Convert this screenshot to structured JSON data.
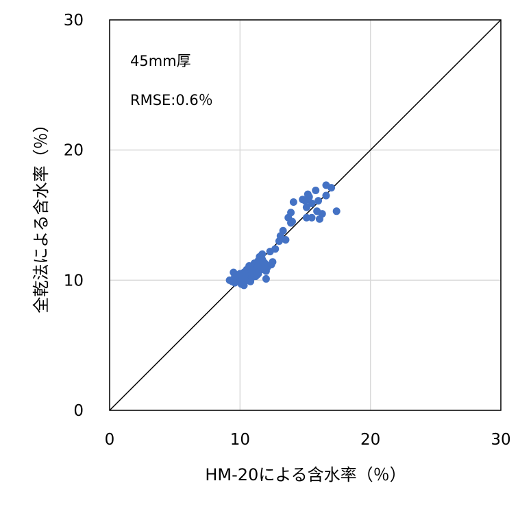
{
  "chart_data": {
    "type": "scatter",
    "annotations": [
      "45mm厚",
      "RMSE:0.6％"
    ],
    "x_label": "HM-20による含水率（％）",
    "y_label": "全乾法による含水率（％）",
    "color": "#4472c4",
    "grid": true,
    "diagonal": true,
    "xlim": [
      0,
      30
    ],
    "ylim": [
      0,
      30
    ],
    "xticks": [
      0,
      10,
      20,
      30
    ],
    "yticks": [
      0,
      10,
      20,
      30
    ],
    "x": [
      16.6,
      17.0,
      15.8,
      16.6,
      15.2,
      14.8,
      15.0,
      15.3,
      14.1,
      15.5,
      16.0,
      15.1,
      15.9,
      13.9,
      17.4,
      13.7,
      14.0,
      15.1,
      15.5,
      16.1,
      16.3,
      13.9,
      13.3,
      13.1,
      13.5,
      13.0,
      12.7,
      12.3,
      11.7,
      11.5,
      9.2,
      9.4,
      9.5,
      9.6,
      9.7,
      9.8,
      9.9,
      10.0,
      10.1,
      10.2,
      10.3,
      10.3,
      10.4,
      10.5,
      10.6,
      10.6,
      10.7,
      10.8,
      10.9,
      11.0,
      11.0,
      11.1,
      11.2,
      11.3,
      11.4,
      11.4,
      11.5,
      11.6,
      11.7,
      11.8,
      11.9,
      12.0,
      12.1,
      12.4,
      12.5,
      9.6,
      10.0,
      10.4,
      10.8,
      11.2,
      11.6,
      12.0,
      10.2,
      10.9,
      11.3,
      11.8
    ],
    "y": [
      17.3,
      17.1,
      16.9,
      16.5,
      16.6,
      16.2,
      16.1,
      16.4,
      16.0,
      15.9,
      16.1,
      15.6,
      15.3,
      15.2,
      15.3,
      14.8,
      14.5,
      14.8,
      14.8,
      14.7,
      15.1,
      14.4,
      13.8,
      13.4,
      13.1,
      13.0,
      12.4,
      12.2,
      12.0,
      11.8,
      10.0,
      9.9,
      10.6,
      9.8,
      10.2,
      10.4,
      10.0,
      10.5,
      9.7,
      10.1,
      10.6,
      9.6,
      10.3,
      10.8,
      10.0,
      10.5,
      11.1,
      10.4,
      10.2,
      10.9,
      10.6,
      11.3,
      10.7,
      11.0,
      11.5,
      10.5,
      11.2,
      10.8,
      11.6,
      10.9,
      11.3,
      10.7,
      11.0,
      11.2,
      11.4,
      10.3,
      9.9,
      10.5,
      9.9,
      10.3,
      11.0,
      10.1,
      10.2,
      10.7,
      10.4,
      11.4
    ]
  }
}
